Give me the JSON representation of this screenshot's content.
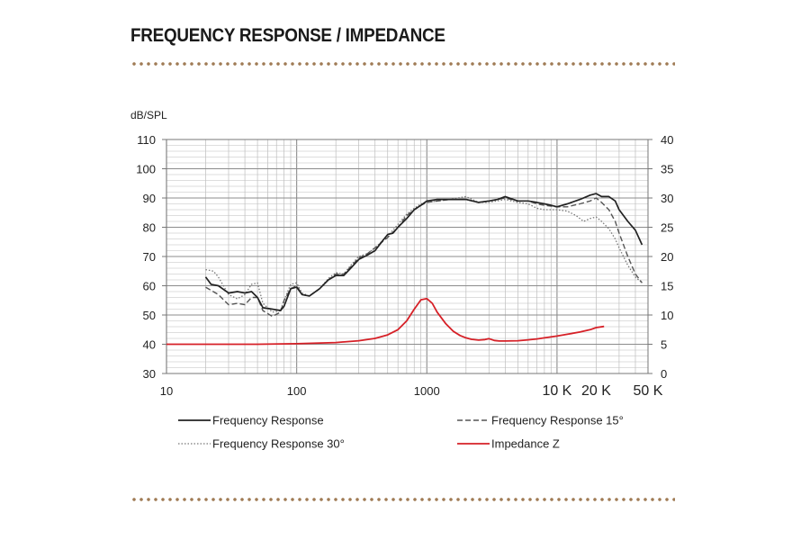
{
  "page": {
    "title": "FREQUENCY RESPONSE / IMPEDANCE"
  },
  "colors": {
    "divider_dots": "#a07b55",
    "series_response": "#222222",
    "series_15": "#555555",
    "series_30": "#777777",
    "series_impedance": "#d62027",
    "grid": "#bdbdbd"
  },
  "chart_data": {
    "type": "line",
    "x_scale": "log",
    "xlim": [
      10,
      50000
    ],
    "ylim_left": [
      30,
      110
    ],
    "ylim_right": [
      0,
      40
    ],
    "ylabel_left": "dB/SPL",
    "grid": true,
    "legend_position": "bottom",
    "x_ticks": [
      {
        "value": 10,
        "label": "10"
      },
      {
        "value": 100,
        "label": "100"
      },
      {
        "value": 1000,
        "label": "1000"
      },
      {
        "value": 10000,
        "label": "10 K"
      },
      {
        "value": 20000,
        "label": "20 K"
      },
      {
        "value": 50000,
        "label": "50 K"
      }
    ],
    "y_ticks_left": [
      "30",
      "40",
      "50",
      "60",
      "70",
      "80",
      "90",
      "100",
      "110"
    ],
    "y_ticks_right": [
      "0",
      "5",
      "10",
      "15",
      "20",
      "25",
      "30",
      "35",
      "40"
    ],
    "series": [
      {
        "name": "Frequency Response",
        "style": "solid",
        "axis": "left",
        "points": [
          [
            20,
            63
          ],
          [
            22,
            60.5
          ],
          [
            25,
            60
          ],
          [
            30,
            57.5
          ],
          [
            35,
            58
          ],
          [
            40,
            57.5
          ],
          [
            45,
            58
          ],
          [
            50,
            56
          ],
          [
            55,
            52.5
          ],
          [
            65,
            52
          ],
          [
            75,
            51.5
          ],
          [
            80,
            53
          ],
          [
            90,
            59
          ],
          [
            100,
            59.5
          ],
          [
            110,
            57
          ],
          [
            125,
            56.5
          ],
          [
            150,
            59
          ],
          [
            175,
            62
          ],
          [
            200,
            63.5
          ],
          [
            230,
            63.5
          ],
          [
            260,
            66
          ],
          [
            300,
            69
          ],
          [
            350,
            70.5
          ],
          [
            400,
            72
          ],
          [
            450,
            75
          ],
          [
            500,
            77.5
          ],
          [
            550,
            78
          ],
          [
            600,
            80
          ],
          [
            700,
            83
          ],
          [
            800,
            86
          ],
          [
            900,
            87.5
          ],
          [
            1000,
            89
          ],
          [
            1200,
            89.5
          ],
          [
            1500,
            89.5
          ],
          [
            2000,
            89.5
          ],
          [
            2500,
            88.5
          ],
          [
            3000,
            89
          ],
          [
            3500,
            89.5
          ],
          [
            4000,
            90.5
          ],
          [
            5000,
            89
          ],
          [
            6000,
            89
          ],
          [
            7000,
            88.5
          ],
          [
            8000,
            88
          ],
          [
            9000,
            87.5
          ],
          [
            10000,
            87
          ],
          [
            12000,
            88
          ],
          [
            15000,
            89.5
          ],
          [
            18000,
            91
          ],
          [
            20000,
            91.5
          ],
          [
            22000,
            90.5
          ],
          [
            25000,
            90.5
          ],
          [
            28000,
            89
          ],
          [
            30000,
            86
          ],
          [
            35000,
            82
          ],
          [
            40000,
            79
          ],
          [
            45000,
            74
          ]
        ]
      },
      {
        "name": "Frequency Response 15°",
        "style": "dashed",
        "axis": "left",
        "points": [
          [
            20,
            59.5
          ],
          [
            25,
            57
          ],
          [
            30,
            53.5
          ],
          [
            35,
            54
          ],
          [
            40,
            53.5
          ],
          [
            45,
            56
          ],
          [
            50,
            56
          ],
          [
            55,
            51.5
          ],
          [
            65,
            49.5
          ],
          [
            75,
            51
          ],
          [
            80,
            55
          ],
          [
            90,
            59
          ],
          [
            100,
            60
          ],
          [
            110,
            57
          ],
          [
            125,
            56.5
          ],
          [
            150,
            59
          ],
          [
            175,
            62
          ],
          [
            200,
            64
          ],
          [
            230,
            64
          ],
          [
            260,
            66.5
          ],
          [
            300,
            69.5
          ],
          [
            350,
            71
          ],
          [
            400,
            73
          ],
          [
            500,
            76.5
          ],
          [
            600,
            80
          ],
          [
            700,
            84
          ],
          [
            800,
            86
          ],
          [
            900,
            87.5
          ],
          [
            1000,
            88.5
          ],
          [
            1500,
            89.5
          ],
          [
            2000,
            89.5
          ],
          [
            2500,
            88.5
          ],
          [
            3000,
            89
          ],
          [
            4000,
            90
          ],
          [
            5000,
            89
          ],
          [
            6000,
            89
          ],
          [
            7000,
            88
          ],
          [
            8000,
            87.5
          ],
          [
            10000,
            87
          ],
          [
            12000,
            87
          ],
          [
            15000,
            88
          ],
          [
            18000,
            89
          ],
          [
            20000,
            90
          ],
          [
            22000,
            88.5
          ],
          [
            25000,
            86
          ],
          [
            28000,
            82
          ],
          [
            30000,
            78
          ],
          [
            35000,
            70
          ],
          [
            40000,
            64
          ],
          [
            45000,
            61
          ]
        ]
      },
      {
        "name": "Frequency Response 30°",
        "style": "dotted",
        "axis": "left",
        "points": [
          [
            20,
            65.5
          ],
          [
            23,
            65
          ],
          [
            25,
            63
          ],
          [
            30,
            57
          ],
          [
            35,
            55.5
          ],
          [
            40,
            57
          ],
          [
            45,
            60.5
          ],
          [
            50,
            61
          ],
          [
            55,
            54
          ],
          [
            65,
            51
          ],
          [
            75,
            51.5
          ],
          [
            80,
            55
          ],
          [
            90,
            60.5
          ],
          [
            100,
            61
          ],
          [
            110,
            57.5
          ],
          [
            125,
            56.5
          ],
          [
            150,
            59
          ],
          [
            175,
            62.5
          ],
          [
            200,
            64.5
          ],
          [
            230,
            64
          ],
          [
            260,
            67
          ],
          [
            300,
            70
          ],
          [
            350,
            71
          ],
          [
            400,
            73
          ],
          [
            500,
            77
          ],
          [
            600,
            81
          ],
          [
            700,
            84.5
          ],
          [
            800,
            86.5
          ],
          [
            900,
            88
          ],
          [
            1000,
            88.5
          ],
          [
            1500,
            89.5
          ],
          [
            2000,
            90.5
          ],
          [
            2500,
            88.5
          ],
          [
            3000,
            88.5
          ],
          [
            4000,
            89.5
          ],
          [
            5000,
            88.5
          ],
          [
            6000,
            88
          ],
          [
            7000,
            86.5
          ],
          [
            8000,
            86
          ],
          [
            10000,
            86
          ],
          [
            12000,
            85.5
          ],
          [
            14000,
            84
          ],
          [
            16000,
            82
          ],
          [
            18000,
            83
          ],
          [
            20000,
            83.5
          ],
          [
            22000,
            82
          ],
          [
            25000,
            79.5
          ],
          [
            28000,
            76
          ],
          [
            30000,
            73
          ],
          [
            35000,
            67
          ],
          [
            40000,
            63
          ],
          [
            45000,
            61
          ]
        ]
      },
      {
        "name": "Impedance Z",
        "style": "solid",
        "axis": "right",
        "points": [
          [
            10,
            5
          ],
          [
            50,
            5
          ],
          [
            100,
            5.1
          ],
          [
            200,
            5.3
          ],
          [
            300,
            5.6
          ],
          [
            400,
            6
          ],
          [
            500,
            6.6
          ],
          [
            600,
            7.5
          ],
          [
            700,
            9
          ],
          [
            800,
            11
          ],
          [
            900,
            12.6
          ],
          [
            1000,
            12.8
          ],
          [
            1100,
            12
          ],
          [
            1200,
            10.5
          ],
          [
            1400,
            8.5
          ],
          [
            1600,
            7.2
          ],
          [
            1800,
            6.5
          ],
          [
            2000,
            6.1
          ],
          [
            2200,
            5.85
          ],
          [
            2500,
            5.7
          ],
          [
            2800,
            5.8
          ],
          [
            3000,
            5.95
          ],
          [
            3300,
            5.65
          ],
          [
            3600,
            5.55
          ],
          [
            4000,
            5.55
          ],
          [
            5000,
            5.6
          ],
          [
            6000,
            5.75
          ],
          [
            7000,
            5.9
          ],
          [
            8000,
            6.1
          ],
          [
            10000,
            6.4
          ],
          [
            12000,
            6.7
          ],
          [
            15000,
            7.1
          ],
          [
            18000,
            7.5
          ],
          [
            20000,
            7.85
          ],
          [
            23000,
            8.05
          ]
        ]
      }
    ]
  }
}
